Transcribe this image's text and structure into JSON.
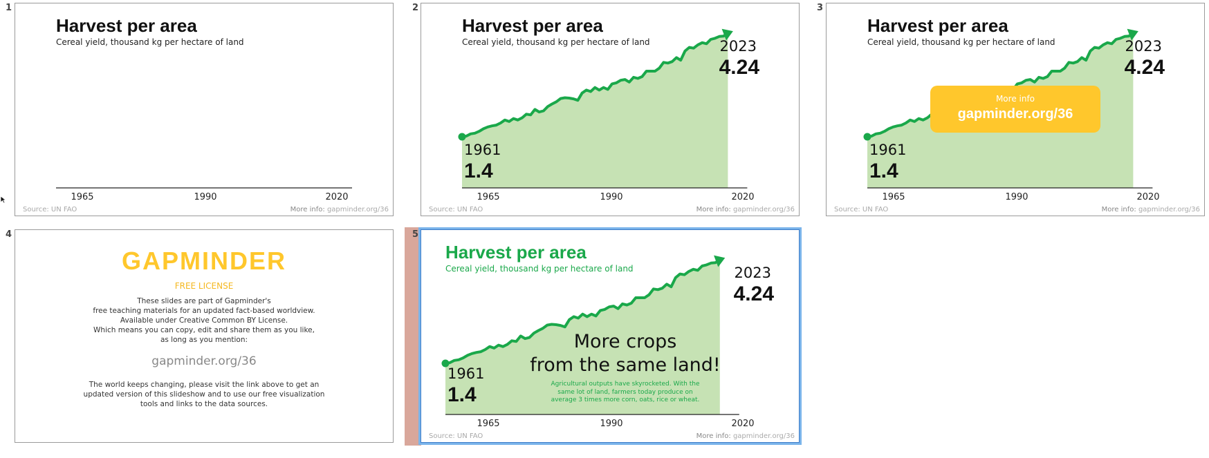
{
  "slides": [
    {
      "number": "1",
      "title": "Harvest per area",
      "subtitle": "Cereal yield, thousand kg per hectare of land",
      "ticks": [
        "1965",
        "1990",
        "2020"
      ],
      "source": "Source: UN FAO",
      "more_info_prefix": "More info: ",
      "more_info_link": "gapminder.org/36"
    },
    {
      "number": "2",
      "title": "Harvest per area",
      "subtitle": "Cereal yield, thousand kg per hectare of land",
      "ticks": [
        "1965",
        "1990",
        "2020"
      ],
      "start_year": "1961",
      "start_value": "1.4",
      "end_year": "2023",
      "end_value": "4.24",
      "source": "Source: UN FAO",
      "more_info_prefix": "More info: ",
      "more_info_link": "gapminder.org/36"
    },
    {
      "number": "3",
      "title": "Harvest per area",
      "subtitle": "Cereal yield, thousand kg per hectare of land",
      "ticks": [
        "1965",
        "1990",
        "2020"
      ],
      "start_year": "1961",
      "start_value": "1.4",
      "end_year": "2023",
      "end_value": "4.24",
      "popup_small": "More info",
      "popup_big": "gapminder.org/36",
      "source": "Source: UN FAO",
      "more_info_prefix": "More info: ",
      "more_info_link": "gapminder.org/36"
    },
    {
      "number": "4",
      "logo": "GAPMINDER",
      "license_heading": "FREE LICENSE",
      "license_lines": [
        "These slides are part of Gapminder's",
        "free teaching materials for an updated fact-based worldview.",
        "Available under Creative Common BY License.",
        "Which means you can copy, edit and share them as you like,",
        "as long as you mention:"
      ],
      "license_link": "gapminder.org/36",
      "footer_lines": [
        "The world keeps changing, please visit the link above to get an",
        "updated version of this slideshow and to use our free visualization",
        "tools and links to the data sources."
      ]
    },
    {
      "number": "5",
      "title": "Harvest per area",
      "subtitle": "Cereal yield, thousand kg per hectare of land",
      "ticks": [
        "1965",
        "1990",
        "2020"
      ],
      "start_year": "1961",
      "start_value": "1.4",
      "end_year": "2023",
      "end_value": "4.24",
      "message_line1": "More crops",
      "message_line2": "from the same land!",
      "note_lines": [
        "Agricultural outputs have skyrocketed. With the",
        "same lot of land, farmers today produce on",
        "average 3 times more corn, oats, rice or wheat."
      ],
      "source": "Source: UN FAO",
      "more_info_prefix": "More info: ",
      "more_info_link": "gapminder.org/36"
    }
  ],
  "colors": {
    "line_green": "#1aa84a",
    "area_green": "#c6e2b4",
    "gapminder_yellow": "#ffc72c",
    "selection_blue": "#7ab4ea"
  },
  "chart_data": {
    "type": "area",
    "x_unit": "year",
    "y_unit": "thousand kg per hectare",
    "xlim": [
      1961,
      2023
    ],
    "ylim": [
      0,
      4.6
    ],
    "ticks": [
      1965,
      1990,
      2020
    ],
    "x": [
      1961,
      1962,
      1963,
      1964,
      1965,
      1966,
      1967,
      1968,
      1969,
      1970,
      1971,
      1972,
      1973,
      1974,
      1975,
      1976,
      1977,
      1978,
      1979,
      1980,
      1981,
      1982,
      1983,
      1984,
      1985,
      1986,
      1987,
      1988,
      1989,
      1990,
      1991,
      1992,
      1993,
      1994,
      1995,
      1996,
      1997,
      1998,
      1999,
      2000,
      2001,
      2002,
      2003,
      2004,
      2005,
      2006,
      2007,
      2008,
      2009,
      2010,
      2011,
      2012,
      2013,
      2014,
      2015,
      2016,
      2017,
      2018,
      2019,
      2020,
      2021,
      2022,
      2023
    ],
    "values": [
      1.4,
      1.42,
      1.48,
      1.5,
      1.55,
      1.62,
      1.67,
      1.7,
      1.72,
      1.78,
      1.86,
      1.82,
      1.9,
      1.86,
      1.92,
      2.02,
      2.0,
      2.15,
      2.08,
      2.11,
      2.23,
      2.3,
      2.36,
      2.45,
      2.47,
      2.46,
      2.44,
      2.4,
      2.6,
      2.68,
      2.64,
      2.75,
      2.68,
      2.75,
      2.7,
      2.85,
      2.88,
      2.95,
      2.97,
      2.9,
      3.03,
      3.0,
      3.05,
      3.2,
      3.2,
      3.2,
      3.28,
      3.44,
      3.42,
      3.46,
      3.57,
      3.5,
      3.75,
      3.85,
      3.83,
      3.92,
      3.98,
      3.95,
      4.07,
      4.1,
      4.15,
      4.16,
      4.24
    ]
  }
}
